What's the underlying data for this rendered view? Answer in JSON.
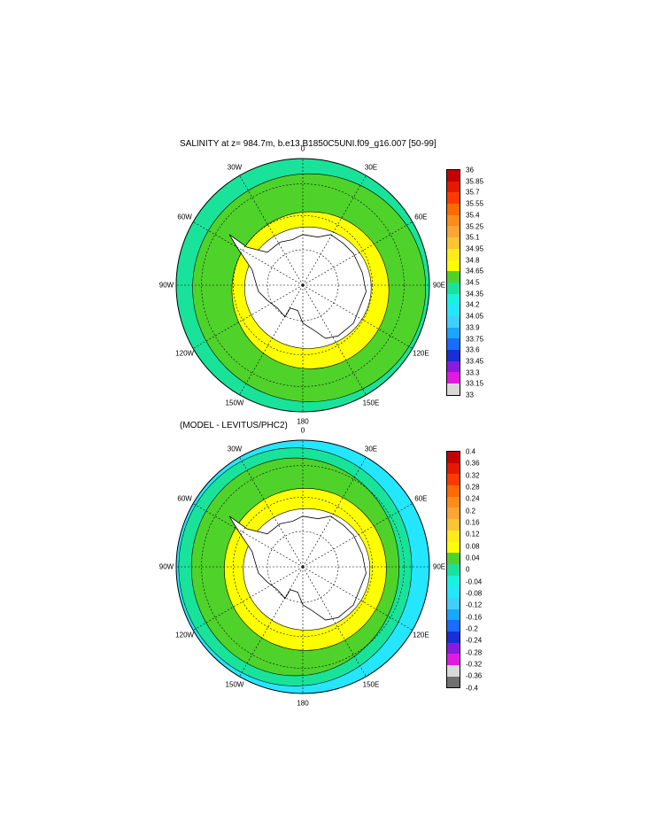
{
  "panel1": {
    "title": "SALINITY at z= 984.7m, b.e13.B1850C5UNI.f09_g16.007 [50-99]",
    "lon_labels": [
      "0",
      "30E",
      "60E",
      "90E",
      "120E",
      "150E",
      "180",
      "150W",
      "120W",
      "90W",
      "60W",
      "30W"
    ],
    "colorbar": {
      "labels": [
        "36",
        "35.85",
        "35.7",
        "35.55",
        "35.4",
        "35.25",
        "35.1",
        "34.95",
        "34.8",
        "34.65",
        "34.5",
        "34.35",
        "34.2",
        "34.05",
        "33.9",
        "33.75",
        "33.6",
        "33.45",
        "33.3",
        "33.15",
        "33"
      ],
      "colors": [
        "#c40000",
        "#e41a00",
        "#ff3a00",
        "#ff6a00",
        "#ff8c1a",
        "#ffa533",
        "#ffc333",
        "#ffeb1a",
        "#ffff00",
        "#4fd32b",
        "#19e39a",
        "#19f2e0",
        "#25e6ff",
        "#3fd0ff",
        "#1aa5ff",
        "#1a6bff",
        "#1a2dd6",
        "#8a1ae0",
        "#e01ae0",
        "#d8d8d8"
      ]
    }
  },
  "panel2": {
    "title": "(MODEL - LEVITUS/PHC2)",
    "lon_labels": [
      "0",
      "30E",
      "60E",
      "90E",
      "120E",
      "150E",
      "180",
      "150W",
      "120W",
      "90W",
      "60W",
      "30W"
    ],
    "colorbar": {
      "labels": [
        "0.4",
        "0.36",
        "0.32",
        "0.28",
        "0.24",
        "0.2",
        "0.16",
        "0.12",
        "0.08",
        "0.04",
        "0",
        "-0.04",
        "-0.08",
        "-0.12",
        "-0.16",
        "-0.2",
        "-0.24",
        "-0.28",
        "-0.32",
        "-0.36",
        "-0.4"
      ],
      "colors": [
        "#c40000",
        "#e41a00",
        "#ff3a00",
        "#ff6a00",
        "#ff8c1a",
        "#ffa533",
        "#ffc333",
        "#ffeb1a",
        "#ffff00",
        "#4fd32b",
        "#19e39a",
        "#19f2e0",
        "#25e6ff",
        "#3fd0ff",
        "#1aa5ff",
        "#1a6bff",
        "#1a2dd6",
        "#8a1ae0",
        "#e01ae0",
        "#d8d8d8",
        "#707070"
      ]
    }
  }
}
